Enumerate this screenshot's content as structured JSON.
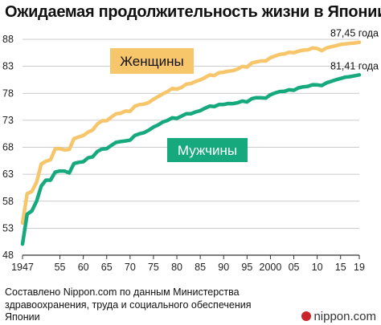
{
  "title": "Ожидаемая продолжительность жизни в Японии",
  "source": "Составлено Nippon.com по данным Министерства здравоохранения, труда и социального обеспечения Японии",
  "brand": "nippon.com",
  "colors": {
    "women": "#f7c66b",
    "men": "#16a97e",
    "axis": "#333333",
    "grid": "#bbbbbb",
    "brand_red": "#c9262c"
  },
  "chart_data": {
    "type": "line",
    "title": "Ожидаемая продолжительность жизни в Японии",
    "xlabel": "",
    "ylabel": "",
    "xlim": [
      1947,
      2019
    ],
    "ylim": [
      48,
      88
    ],
    "y_ticks": [
      48,
      53,
      58,
      63,
      68,
      73,
      78,
      83,
      88
    ],
    "x_ticks": [
      {
        "value": 1947,
        "label": "1947"
      },
      {
        "value": 1955,
        "label": "55"
      },
      {
        "value": 1960,
        "label": "60"
      },
      {
        "value": 1965,
        "label": "65"
      },
      {
        "value": 1970,
        "label": "70"
      },
      {
        "value": 1975,
        "label": "75"
      },
      {
        "value": 1980,
        "label": "80"
      },
      {
        "value": 1985,
        "label": "85"
      },
      {
        "value": 1990,
        "label": "90"
      },
      {
        "value": 1995,
        "label": "95"
      },
      {
        "value": 2000,
        "label": "2000"
      },
      {
        "value": 2005,
        "label": "05"
      },
      {
        "value": 2010,
        "label": "10"
      },
      {
        "value": 2015,
        "label": "15"
      },
      {
        "value": 2019,
        "label": "19"
      }
    ],
    "grid": "horizontal",
    "series": [
      {
        "name": "Женщины",
        "color": "#f7c66b",
        "end_label": "87,45 года",
        "x": [
          1947,
          1948,
          1949,
          1950,
          1951,
          1952,
          1953,
          1954,
          1955,
          1956,
          1957,
          1958,
          1959,
          1960,
          1961,
          1962,
          1963,
          1964,
          1965,
          1966,
          1967,
          1968,
          1969,
          1970,
          1971,
          1972,
          1973,
          1974,
          1975,
          1976,
          1977,
          1978,
          1979,
          1980,
          1981,
          1982,
          1983,
          1984,
          1985,
          1986,
          1987,
          1988,
          1989,
          1990,
          1991,
          1992,
          1993,
          1994,
          1995,
          1996,
          1997,
          1998,
          1999,
          2000,
          2001,
          2002,
          2003,
          2004,
          2005,
          2006,
          2007,
          2008,
          2009,
          2010,
          2011,
          2012,
          2013,
          2014,
          2015,
          2016,
          2017,
          2018,
          2019
        ],
        "values": [
          53.96,
          59.4,
          59.8,
          61.5,
          64.9,
          65.4,
          65.7,
          67.7,
          67.75,
          67.5,
          67.6,
          69.6,
          69.9,
          70.19,
          70.8,
          71.2,
          72.3,
          72.9,
          72.92,
          73.6,
          74.2,
          74.3,
          74.7,
          74.66,
          75.6,
          75.9,
          76.0,
          76.3,
          76.89,
          77.4,
          77.9,
          78.3,
          78.9,
          78.76,
          79.1,
          79.7,
          79.8,
          80.2,
          80.48,
          80.9,
          81.4,
          81.3,
          81.8,
          81.9,
          82.1,
          82.2,
          82.5,
          82.98,
          82.85,
          83.6,
          83.8,
          84.0,
          83.99,
          84.6,
          84.9,
          85.2,
          85.3,
          85.6,
          85.52,
          85.8,
          86.0,
          86.05,
          86.4,
          86.3,
          85.9,
          86.41,
          86.61,
          86.83,
          87.05,
          87.14,
          87.26,
          87.32,
          87.45
        ]
      },
      {
        "name": "Мужчины",
        "color": "#16a97e",
        "end_label": "81,41 года",
        "x": [
          1947,
          1948,
          1949,
          1950,
          1951,
          1952,
          1953,
          1954,
          1955,
          1956,
          1957,
          1958,
          1959,
          1960,
          1961,
          1962,
          1963,
          1964,
          1965,
          1966,
          1967,
          1968,
          1969,
          1970,
          1971,
          1972,
          1973,
          1974,
          1975,
          1976,
          1977,
          1978,
          1979,
          1980,
          1981,
          1982,
          1983,
          1984,
          1985,
          1986,
          1987,
          1988,
          1989,
          1990,
          1991,
          1992,
          1993,
          1994,
          1995,
          1996,
          1997,
          1998,
          1999,
          2000,
          2001,
          2002,
          2003,
          2004,
          2005,
          2006,
          2007,
          2008,
          2009,
          2010,
          2011,
          2012,
          2013,
          2014,
          2015,
          2016,
          2017,
          2018,
          2019
        ],
        "values": [
          50.06,
          55.6,
          56.2,
          58.0,
          60.8,
          61.9,
          61.9,
          63.41,
          63.6,
          63.59,
          63.24,
          64.98,
          65.21,
          65.32,
          66.03,
          66.23,
          67.21,
          67.67,
          67.74,
          68.35,
          68.91,
          69.05,
          69.18,
          69.31,
          70.17,
          70.5,
          70.7,
          71.16,
          71.73,
          72.15,
          72.69,
          72.97,
          73.46,
          73.35,
          73.79,
          74.22,
          74.2,
          74.54,
          74.78,
          75.23,
          75.61,
          75.54,
          75.91,
          75.92,
          76.11,
          76.09,
          76.25,
          76.57,
          76.38,
          77.01,
          77.19,
          77.16,
          77.1,
          77.72,
          78.07,
          78.32,
          78.36,
          78.64,
          78.56,
          79.0,
          79.19,
          79.29,
          79.59,
          79.55,
          79.44,
          79.94,
          80.21,
          80.5,
          80.75,
          80.98,
          81.09,
          81.25,
          81.41
        ]
      }
    ]
  }
}
